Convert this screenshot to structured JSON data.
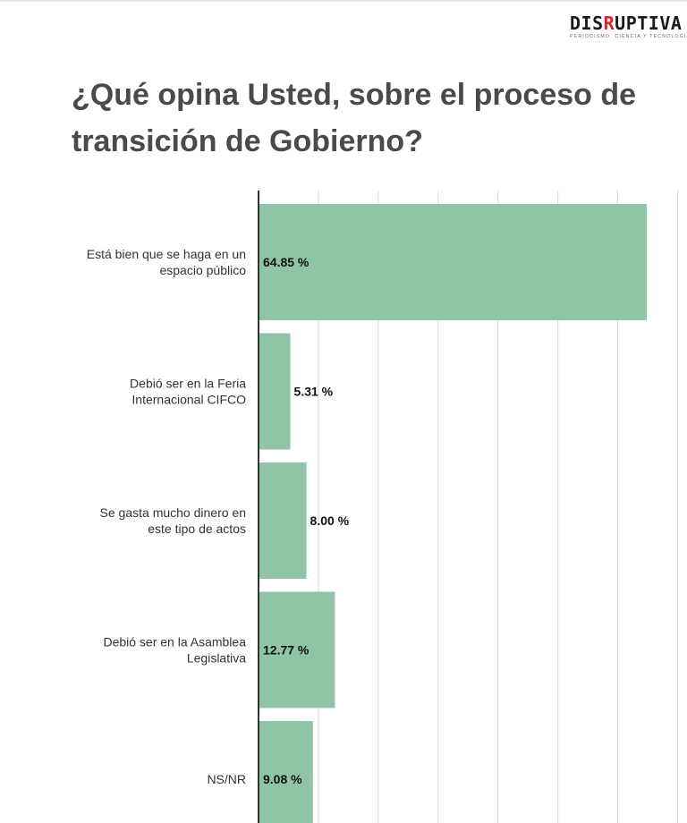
{
  "logo": {
    "prefix": "DIS",
    "accent": "R",
    "suffix": "UPTIVA",
    "tagline": "Periodismo, ciencia y tecnología",
    "accent_color": "#d7262b"
  },
  "title": "¿Qué opina Usted, sobre el proceso de transición de Gobierno?",
  "chart_data": {
    "type": "bar",
    "orientation": "horizontal",
    "title": "¿Qué opina Usted, sobre el proceso de transición de Gobierno?",
    "categories": [
      [
        "Está bien que se haga en un",
        "espacio público"
      ],
      [
        "Debió ser en la Feria",
        "Internacional CIFCO"
      ],
      [
        "Se gasta mucho dinero en",
        "este tipo de actos"
      ],
      [
        "Debió ser en la Asamblea",
        "Legislativa"
      ],
      [
        "NS/NR"
      ]
    ],
    "values": [
      64.85,
      5.31,
      8.0,
      12.77,
      9.08
    ],
    "labels": [
      "64.85 %",
      "5.31 %",
      "8.00 %",
      "12.77 %",
      "9.08 %"
    ],
    "xlim": [
      0,
      70
    ],
    "grid": true,
    "bar_color": "#8fc4a6"
  }
}
